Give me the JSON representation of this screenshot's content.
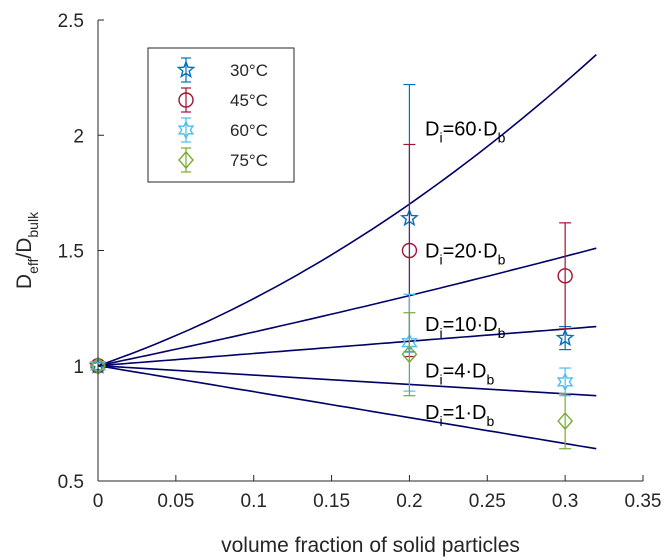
{
  "chart_data": {
    "type": "scatter",
    "xlabel": "volume fraction of solid particles",
    "ylabel": {
      "main": "D",
      "sub1": "eff",
      "slash": "/D",
      "sub2": "bulk"
    },
    "xlim": [
      0,
      0.35
    ],
    "ylim": [
      0.5,
      2.5
    ],
    "xticks": [
      0,
      0.05,
      0.1,
      0.15,
      0.2,
      0.25,
      0.3,
      0.35
    ],
    "yticks": [
      0.5,
      1,
      1.5,
      2,
      2.5
    ],
    "xtick_labels": [
      "0",
      "0.05",
      "0.1",
      "0.15",
      "0.2",
      "0.25",
      "0.3",
      "0.35"
    ],
    "ytick_labels": [
      "0.5",
      "1",
      "1.5",
      "2",
      "2.5"
    ],
    "grid": false,
    "legend_position": "top-left",
    "series": [
      {
        "name": "30°C",
        "color": "#0072BD",
        "marker": "star5",
        "points": [
          {
            "x": 0,
            "y": 1.0,
            "err": 0
          },
          {
            "x": 0.2,
            "y": 1.64,
            "err": 0.58
          },
          {
            "x": 0.3,
            "y": 1.12,
            "err": 0.05
          }
        ]
      },
      {
        "name": "45°C",
        "color": "#A2142F",
        "marker": "circle",
        "points": [
          {
            "x": 0,
            "y": 1.0,
            "err": 0
          },
          {
            "x": 0.2,
            "y": 1.5,
            "err": 0.46
          },
          {
            "x": 0.3,
            "y": 1.39,
            "err": 0.23
          }
        ]
      },
      {
        "name": "60°C",
        "color": "#4DBEEE",
        "marker": "hexagram",
        "points": [
          {
            "x": 0,
            "y": 1.0,
            "err": 0
          },
          {
            "x": 0.2,
            "y": 1.1,
            "err": 0.21
          },
          {
            "x": 0.3,
            "y": 0.93,
            "err": 0.06
          }
        ]
      },
      {
        "name": "75°C",
        "color": "#77AC30",
        "marker": "diamond",
        "points": [
          {
            "x": 0,
            "y": 1.0,
            "err": 0
          },
          {
            "x": 0.2,
            "y": 1.05,
            "err": 0.18
          },
          {
            "x": 0.3,
            "y": 0.76,
            "err": 0.12
          }
        ]
      }
    ],
    "model_curves": {
      "color": "#000066",
      "x_range": [
        0,
        0.32
      ],
      "curves": [
        {
          "ratio": 60,
          "y_end": 2.35,
          "label": {
            "main": "D",
            "sub": "i",
            "mid": "=60·D",
            "sub2": "b"
          },
          "label_at": {
            "x": 0.21,
            "y": 2.0
          }
        },
        {
          "ratio": 20,
          "y_end": 1.51,
          "label": {
            "main": "D",
            "sub": "i",
            "mid": "=20·D",
            "sub2": "b"
          },
          "label_at": {
            "x": 0.21,
            "y": 1.47
          }
        },
        {
          "ratio": 10,
          "y_end": 1.17,
          "label": {
            "main": "D",
            "sub": "i",
            "mid": "=10·D",
            "sub2": "b"
          },
          "label_at": {
            "x": 0.21,
            "y": 1.15
          }
        },
        {
          "ratio": 4,
          "y_end": 0.87,
          "label": {
            "main": "D",
            "sub": "i",
            "mid": "=4·D",
            "sub2": "b"
          },
          "label_at": {
            "x": 0.21,
            "y": 0.95
          }
        },
        {
          "ratio": 1,
          "y_end": 0.64,
          "label": {
            "main": "D",
            "sub": "i",
            "mid": "=1·D",
            "sub2": "b"
          },
          "label_at": {
            "x": 0.21,
            "y": 0.77
          }
        }
      ]
    }
  }
}
